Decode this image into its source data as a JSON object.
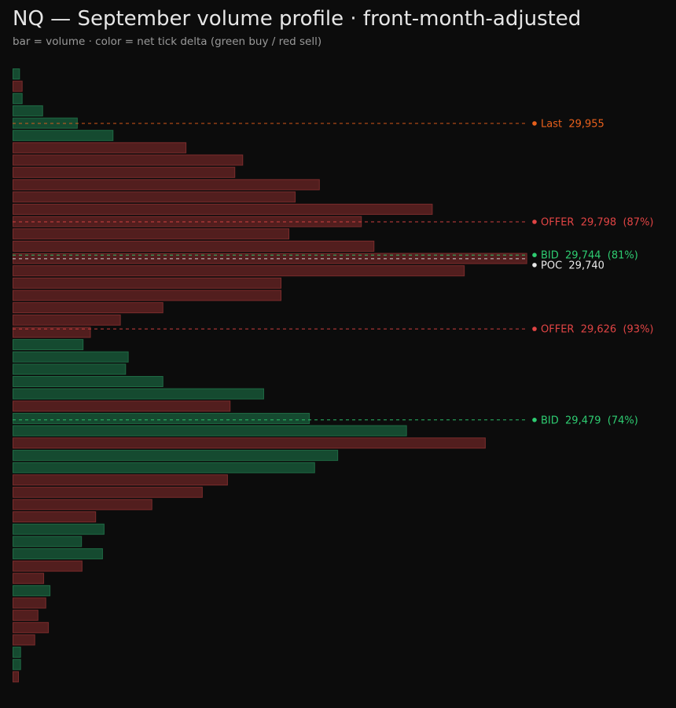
{
  "header": {
    "title": "NQ — September volume profile · front-month-adjusted",
    "subtitle": "bar = volume · color = net tick delta (green buy / red sell)"
  },
  "colors": {
    "background": "#0c0c0c",
    "buy_fill": "#154a30",
    "buy_stroke": "#1f6a44",
    "sell_fill": "#521e1e",
    "sell_stroke": "#7a2c2c",
    "last": "#e8601c",
    "offer": "#e04444",
    "bid": "#2ecc71",
    "poc": "#e8e8e8"
  },
  "chart_data": {
    "type": "bar",
    "orientation": "horizontal",
    "title": "NQ — September volume profile · front-month-adjusted",
    "subtitle": "bar = volume · color = net tick delta (green buy / red sell)",
    "xlim": [
      0,
      100
    ],
    "grid": false,
    "bars": [
      {
        "volume": 1.4,
        "delta": "buy"
      },
      {
        "volume": 1.9,
        "delta": "sell"
      },
      {
        "volume": 1.9,
        "delta": "buy"
      },
      {
        "volume": 5.8,
        "delta": "buy"
      },
      {
        "volume": 12.4,
        "delta": "buy"
      },
      {
        "volume": 19.2,
        "delta": "buy"
      },
      {
        "volume": 33.1,
        "delta": "sell"
      },
      {
        "volume": 43.9,
        "delta": "sell"
      },
      {
        "volume": 42.4,
        "delta": "sell"
      },
      {
        "volume": 58.5,
        "delta": "sell"
      },
      {
        "volume": 53.9,
        "delta": "sell"
      },
      {
        "volume": 80.0,
        "delta": "sell"
      },
      {
        "volume": 66.5,
        "delta": "sell"
      },
      {
        "volume": 52.7,
        "delta": "sell"
      },
      {
        "volume": 68.9,
        "delta": "sell"
      },
      {
        "volume": 98.0,
        "delta": "sell"
      },
      {
        "volume": 86.1,
        "delta": "sell"
      },
      {
        "volume": 51.2,
        "delta": "sell"
      },
      {
        "volume": 51.2,
        "delta": "sell"
      },
      {
        "volume": 28.7,
        "delta": "sell"
      },
      {
        "volume": 20.6,
        "delta": "sell"
      },
      {
        "volume": 14.9,
        "delta": "sell"
      },
      {
        "volume": 13.5,
        "delta": "buy"
      },
      {
        "volume": 22.1,
        "delta": "buy"
      },
      {
        "volume": 21.6,
        "delta": "buy"
      },
      {
        "volume": 28.7,
        "delta": "buy"
      },
      {
        "volume": 47.9,
        "delta": "buy"
      },
      {
        "volume": 41.5,
        "delta": "sell"
      },
      {
        "volume": 56.6,
        "delta": "buy"
      },
      {
        "volume": 75.1,
        "delta": "buy"
      },
      {
        "volume": 90.1,
        "delta": "sell"
      },
      {
        "volume": 62.0,
        "delta": "buy"
      },
      {
        "volume": 57.6,
        "delta": "buy"
      },
      {
        "volume": 41.0,
        "delta": "sell"
      },
      {
        "volume": 36.2,
        "delta": "sell"
      },
      {
        "volume": 26.6,
        "delta": "sell"
      },
      {
        "volume": 15.9,
        "delta": "sell"
      },
      {
        "volume": 17.5,
        "delta": "buy"
      },
      {
        "volume": 13.2,
        "delta": "buy"
      },
      {
        "volume": 17.2,
        "delta": "buy"
      },
      {
        "volume": 13.3,
        "delta": "sell"
      },
      {
        "volume": 6.0,
        "delta": "sell"
      },
      {
        "volume": 7.2,
        "delta": "buy"
      },
      {
        "volume": 6.4,
        "delta": "sell"
      },
      {
        "volume": 4.9,
        "delta": "sell"
      },
      {
        "volume": 6.9,
        "delta": "sell"
      },
      {
        "volume": 4.3,
        "delta": "sell"
      },
      {
        "volume": 1.6,
        "delta": "buy"
      },
      {
        "volume": 1.6,
        "delta": "buy"
      },
      {
        "volume": 1.2,
        "delta": "sell"
      }
    ],
    "levels": [
      {
        "kind": "last",
        "label": "Last",
        "price": "29,955",
        "pct": "",
        "bar_index": 4.5
      },
      {
        "kind": "offer",
        "label": "OFFER",
        "price": "29,798",
        "pct": "(87%)",
        "bar_index": 12.5
      },
      {
        "kind": "bid",
        "label": "BID",
        "price": "29,744",
        "pct": "(81%)",
        "bar_index": 15.2
      },
      {
        "kind": "poc",
        "label": "POC",
        "price": "29,740",
        "pct": "",
        "bar_index": 15.5
      },
      {
        "kind": "offer",
        "label": "OFFER",
        "price": "29,626",
        "pct": "(93%)",
        "bar_index": 21.2
      },
      {
        "kind": "bid",
        "label": "BID",
        "price": "29,479",
        "pct": "(74%)",
        "bar_index": 28.6
      }
    ]
  }
}
